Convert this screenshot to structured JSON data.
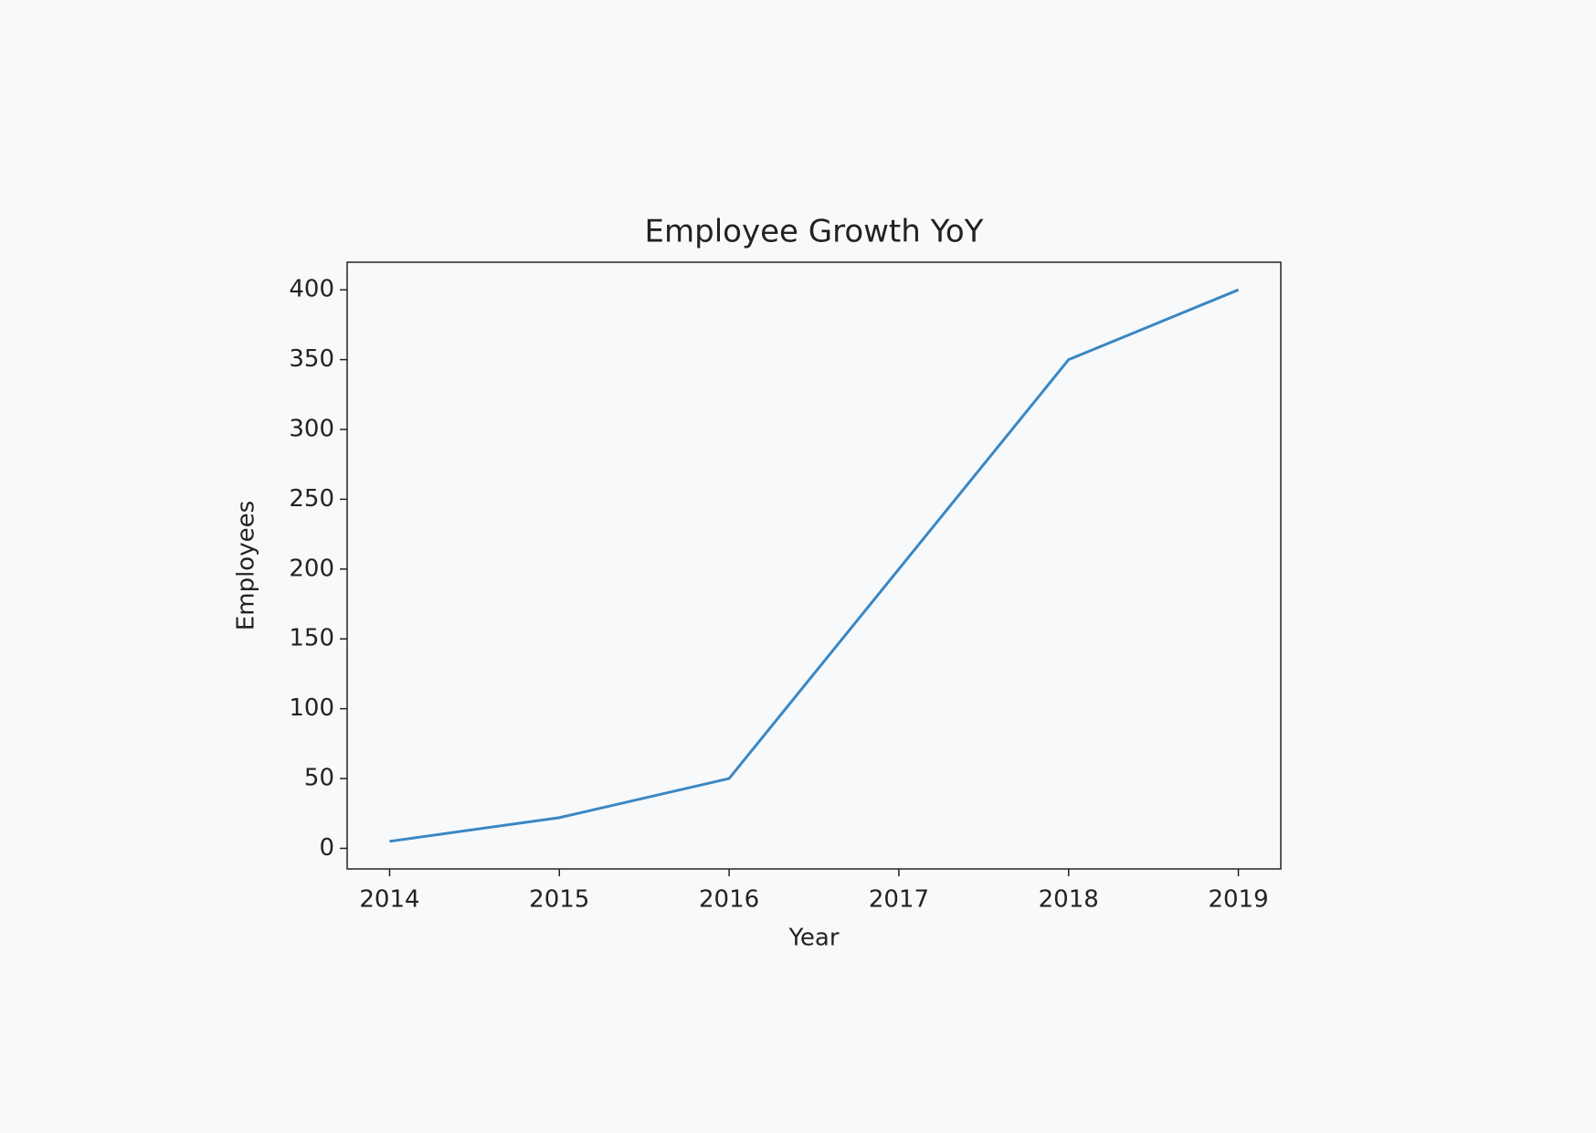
{
  "chart_data": {
    "type": "line",
    "title": "Employee Growth YoY",
    "x_label": "Year",
    "y_label": "Employees",
    "x": [
      2014,
      2015,
      2016,
      2017,
      2018,
      2019
    ],
    "series": [
      {
        "name": "Employees",
        "color": "#3a87c3",
        "values": [
          5,
          22,
          50,
          200,
          350,
          400
        ]
      }
    ],
    "xlim": [
      2013.75,
      2019.25
    ],
    "xticks": [
      2014,
      2015,
      2016,
      2017,
      2018,
      2019
    ],
    "ylim": [
      -14.75,
      419.75
    ],
    "yticks": [
      0,
      50,
      100,
      150,
      200,
      250,
      300,
      350,
      400
    ],
    "grid": false
  }
}
